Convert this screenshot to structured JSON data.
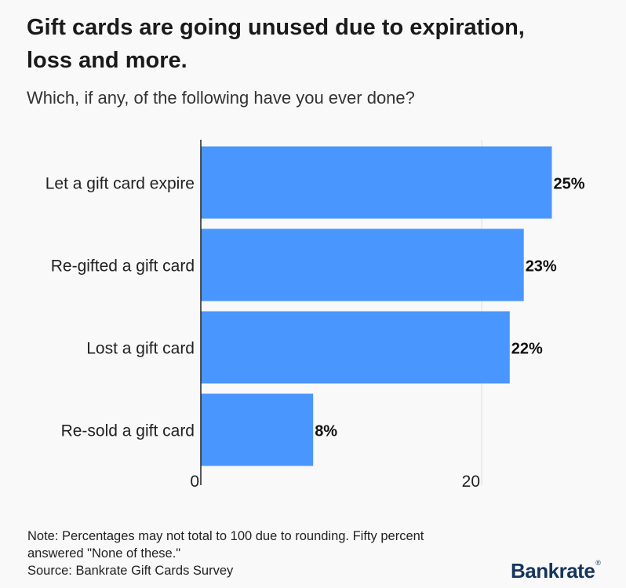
{
  "title": "Gift cards are going unused due to expiration, loss and more.",
  "subtitle": "Which, if any, of the following have you ever done?",
  "chart_data": {
    "type": "bar",
    "orientation": "horizontal",
    "categories": [
      "Let a gift card expire",
      "Re-gifted a gift card",
      "Lost a gift card",
      "Re-sold a gift card"
    ],
    "values": [
      25,
      23,
      22,
      8
    ],
    "value_labels": [
      "25%",
      "23%",
      "22%",
      "8%"
    ],
    "x_ticks": [
      "0",
      "20"
    ],
    "xlim": [
      0,
      30
    ],
    "grid": true,
    "bar_color": "#4a96ff"
  },
  "footnote": {
    "note": "Note: Percentages may not total to 100 due to rounding. Fifty percent answered \"None of these.\"",
    "source": "Source: Bankrate Gift Cards Survey"
  },
  "brand": {
    "logo_text": "Bankrate",
    "logo_mark": "®",
    "color": "#16355a"
  }
}
